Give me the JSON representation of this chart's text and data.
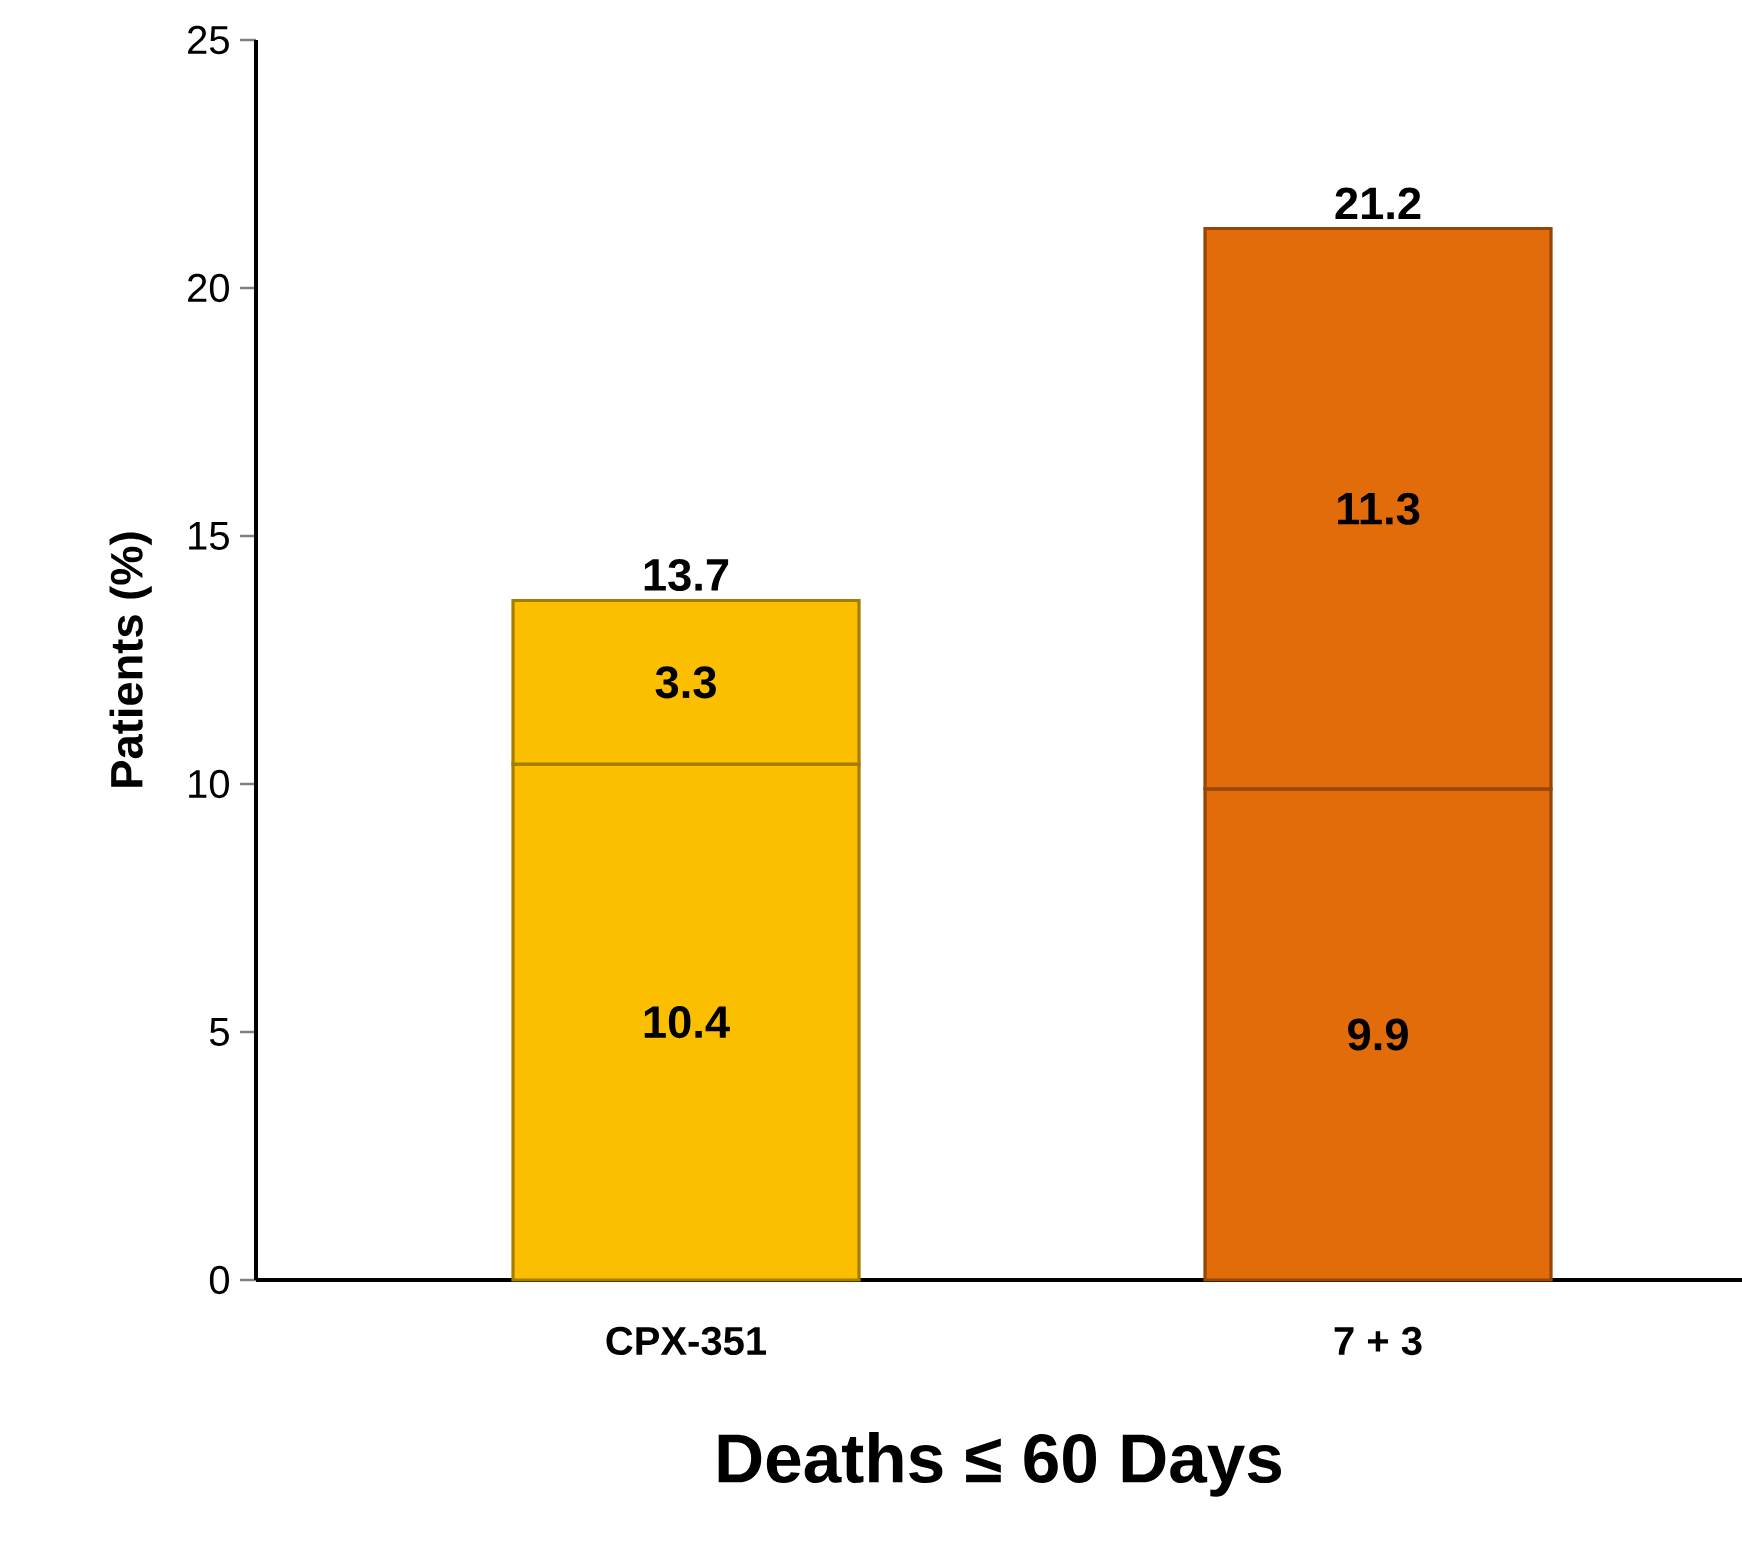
{
  "chart_data": {
    "type": "bar",
    "stacked": true,
    "xlabel": "Deaths ≤ 60 Days",
    "ylabel": "Patients (%)",
    "categories": [
      "CPX-351",
      "7 + 3"
    ],
    "series": [
      {
        "values": [
          10.4,
          9.9
        ],
        "colors": [
          "#fbbf00",
          "#e36c0a"
        ]
      },
      {
        "values": [
          3.3,
          11.3
        ],
        "colors": [
          "#fbbf00",
          "#e36c0a"
        ]
      }
    ],
    "ylim": [
      0,
      25
    ],
    "yticks": [
      0,
      5,
      10,
      15,
      20,
      25
    ],
    "data_labels": true,
    "totals": [
      "13.7",
      "21.2"
    ],
    "grid": false
  }
}
